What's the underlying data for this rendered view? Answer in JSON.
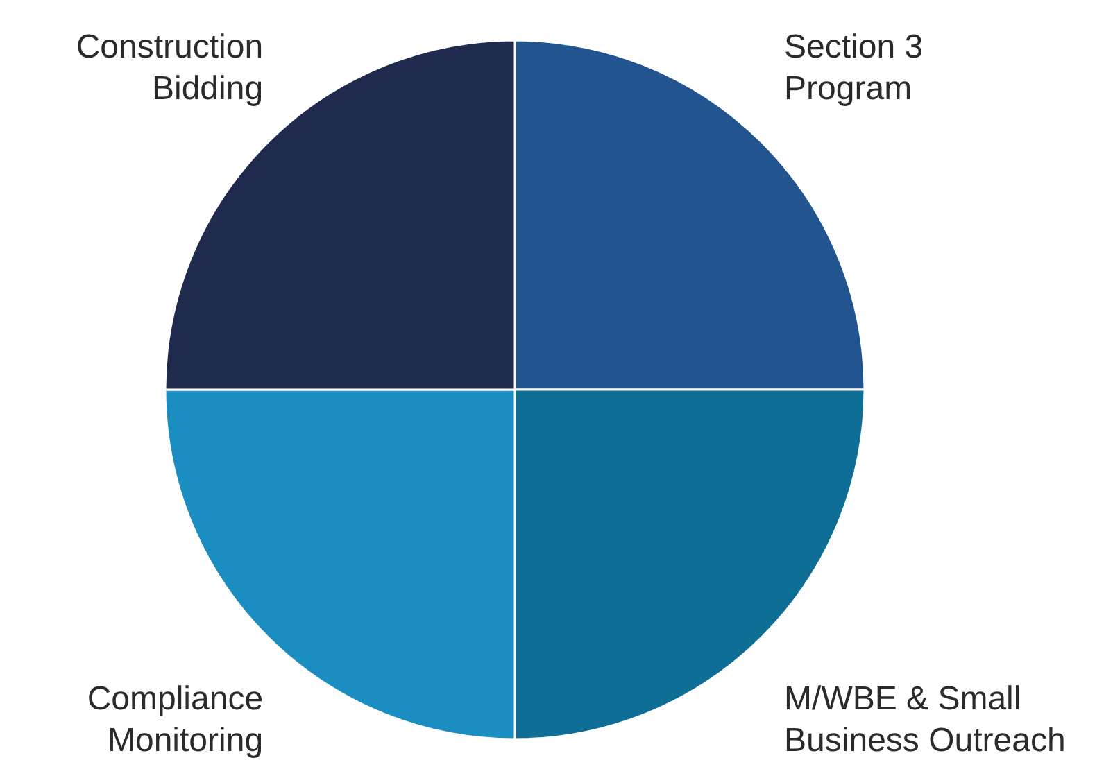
{
  "chart_data": {
    "type": "pie",
    "categories": [
      "Section 3 Program",
      "M/WBE & Small Business Outreach",
      "Compliance Monitoring",
      "Construction Bidding"
    ],
    "values": [
      25,
      25,
      25,
      25
    ],
    "colors": [
      "#22558f",
      "#0e6e96",
      "#1a8ec0",
      "#1f2a4e"
    ]
  }
}
